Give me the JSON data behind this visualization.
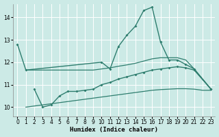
{
  "xlabel": "Humidex (Indice chaleur)",
  "bg_color": "#cceae6",
  "grid_color": "#ffffff",
  "line_color": "#2e7d6e",
  "xlim": [
    -0.5,
    23.5
  ],
  "ylim": [
    9.6,
    14.6
  ],
  "yticks": [
    10,
    11,
    12,
    13,
    14
  ],
  "xticks": [
    0,
    1,
    2,
    3,
    4,
    5,
    6,
    7,
    8,
    9,
    10,
    11,
    12,
    13,
    14,
    15,
    16,
    17,
    18,
    19,
    20,
    21,
    22,
    23
  ],
  "series": [
    {
      "x": [
        0,
        1,
        10,
        11,
        12,
        13,
        14,
        15,
        16,
        17,
        18,
        19,
        20,
        21,
        23
      ],
      "y": [
        12.8,
        11.65,
        12.0,
        11.7,
        12.7,
        13.2,
        13.6,
        14.3,
        14.45,
        12.9,
        12.1,
        12.1,
        11.9,
        11.7,
        10.8
      ],
      "marker": true,
      "lw": 1.0
    },
    {
      "x": [
        1,
        2,
        3,
        4,
        5,
        6,
        7,
        8,
        9,
        10,
        11,
        12,
        13,
        14,
        15,
        16,
        17,
        18,
        19,
        20,
        21,
        23
      ],
      "y": [
        11.65,
        11.65,
        11.65,
        11.65,
        11.65,
        11.65,
        11.65,
        11.65,
        11.65,
        11.7,
        11.75,
        11.82,
        11.88,
        11.95,
        12.05,
        12.15,
        12.2,
        12.2,
        12.2,
        12.1,
        11.7,
        10.8
      ],
      "marker": false,
      "lw": 0.9
    },
    {
      "x": [
        2,
        3,
        4,
        5,
        6,
        7,
        8,
        9,
        10,
        11,
        12,
        13,
        14,
        15,
        16,
        17,
        18,
        19,
        20,
        21,
        23
      ],
      "y": [
        10.8,
        10.0,
        10.1,
        10.5,
        10.7,
        10.7,
        10.75,
        10.8,
        11.0,
        11.1,
        11.25,
        11.35,
        11.45,
        11.55,
        11.65,
        11.7,
        11.75,
        11.8,
        11.75,
        11.65,
        10.8
      ],
      "marker": true,
      "lw": 1.0
    },
    {
      "x": [
        1,
        2,
        3,
        4,
        5,
        6,
        7,
        8,
        9,
        10,
        11,
        12,
        13,
        14,
        15,
        16,
        17,
        18,
        19,
        20,
        21,
        22,
        23
      ],
      "y": [
        10.0,
        10.05,
        10.1,
        10.15,
        10.2,
        10.25,
        10.3,
        10.35,
        10.4,
        10.45,
        10.5,
        10.55,
        10.6,
        10.65,
        10.7,
        10.75,
        10.78,
        10.8,
        10.82,
        10.82,
        10.8,
        10.75,
        10.75
      ],
      "marker": false,
      "lw": 0.9
    }
  ]
}
